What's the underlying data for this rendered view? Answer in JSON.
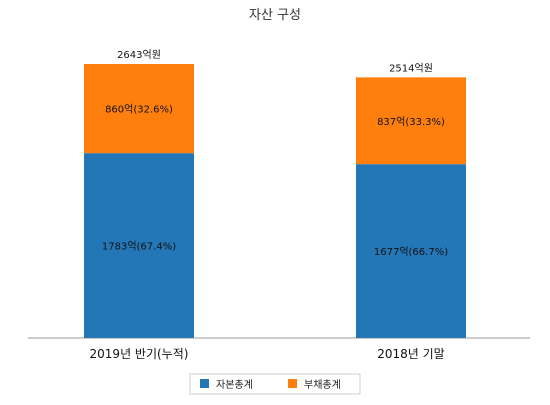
{
  "chart_data": {
    "type": "bar",
    "stacked": true,
    "title": "자산 구성",
    "categories": [
      "2019년 반기(누적)",
      "2018년 기말"
    ],
    "totals": [
      2643,
      2514
    ],
    "total_labels": [
      "2643억원",
      "2514억원"
    ],
    "series": [
      {
        "name": "자본총계",
        "color": "#2477b6",
        "values": [
          1783,
          1677
        ],
        "labels": [
          "1783억(67.4%)",
          "1677억(66.7%)"
        ]
      },
      {
        "name": "부채총계",
        "color": "#ff7f0e",
        "values": [
          860,
          837
        ],
        "labels": [
          "860억(32.6%)",
          "837억(33.3%)"
        ]
      }
    ],
    "ylim": [
      0,
      2643
    ],
    "grid": false,
    "legend_position": "bottom"
  }
}
